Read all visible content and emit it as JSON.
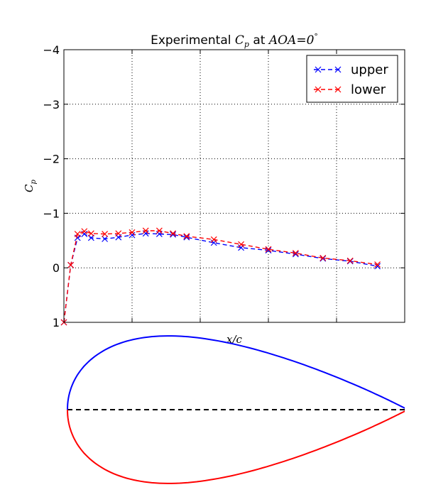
{
  "chart_data": {
    "type": "line",
    "title": "Experimental Cp at AOA=0°",
    "title_parts": {
      "prefix": "Experimental ",
      "cp_main": "C",
      "cp_sub": "p",
      "mid": " at ",
      "aoa": "AOA",
      "eq": "=0",
      "deg": "°"
    },
    "xlabel": "x/c",
    "ylabel": {
      "main": "C",
      "sub": "p"
    },
    "x_range": [
      0,
      1
    ],
    "y_range": [
      1,
      -4
    ],
    "y_inverted": true,
    "y_ticks": [
      -4,
      -3,
      -2,
      -1,
      0,
      1
    ],
    "y_tick_labels": [
      "−4",
      "−3",
      "−2",
      "−1",
      "0",
      "1"
    ],
    "x_ticks_grid": [
      0.2,
      0.4,
      0.6,
      0.8
    ],
    "grid": true,
    "legend_position": "top-right",
    "series": [
      {
        "name": "upper",
        "color": "#0000ff",
        "x": [
          0.0,
          0.02,
          0.04,
          0.06,
          0.08,
          0.12,
          0.16,
          0.2,
          0.24,
          0.28,
          0.32,
          0.36,
          0.44,
          0.52,
          0.6,
          0.68,
          0.76,
          0.84,
          0.92
        ],
        "y": [
          1.0,
          -0.05,
          -0.55,
          -0.62,
          -0.55,
          -0.53,
          -0.56,
          -0.6,
          -0.63,
          -0.62,
          -0.61,
          -0.56,
          -0.46,
          -0.37,
          -0.32,
          -0.25,
          -0.17,
          -0.12,
          -0.03
        ]
      },
      {
        "name": "lower",
        "color": "#ff0000",
        "x": [
          0.0,
          0.02,
          0.04,
          0.06,
          0.08,
          0.12,
          0.16,
          0.2,
          0.24,
          0.28,
          0.32,
          0.36,
          0.44,
          0.52,
          0.6,
          0.68,
          0.76,
          0.84,
          0.92
        ],
        "y": [
          1.0,
          -0.05,
          -0.62,
          -0.67,
          -0.63,
          -0.62,
          -0.63,
          -0.65,
          -0.68,
          -0.68,
          -0.63,
          -0.58,
          -0.52,
          -0.43,
          -0.34,
          -0.27,
          -0.18,
          -0.13,
          -0.06
        ]
      }
    ]
  },
  "airfoil": {
    "upper_color": "#0000ff",
    "lower_color": "#ff0000",
    "chord_line_color": "#000000",
    "thickness_ratio": 0.18
  }
}
